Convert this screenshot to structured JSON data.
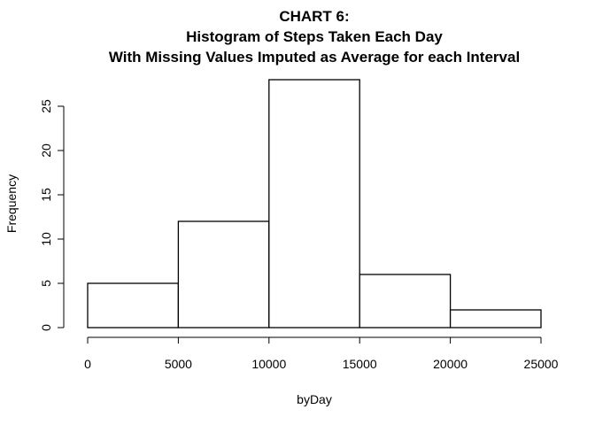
{
  "chart_data": {
    "type": "bar",
    "title_lines": [
      "CHART 6:",
      "Histogram of Steps Taken Each Day",
      "With Missing Values Imputed as Average for each Interval"
    ],
    "xlabel": "byDay",
    "ylabel": "Frequency",
    "bins": [
      {
        "from": 0,
        "to": 5000,
        "count": 5
      },
      {
        "from": 5000,
        "to": 10000,
        "count": 12
      },
      {
        "from": 10000,
        "to": 15000,
        "count": 28
      },
      {
        "from": 15000,
        "to": 20000,
        "count": 6
      },
      {
        "from": 20000,
        "to": 25000,
        "count": 2
      }
    ],
    "x_ticks": [
      0,
      5000,
      10000,
      15000,
      20000,
      25000
    ],
    "y_ticks": [
      0,
      5,
      10,
      15,
      20,
      25
    ],
    "xlim": [
      0,
      25000
    ],
    "ylim": [
      0,
      28
    ],
    "grid": false,
    "bar_fill": "#ffffff",
    "bar_stroke": "#000000"
  }
}
